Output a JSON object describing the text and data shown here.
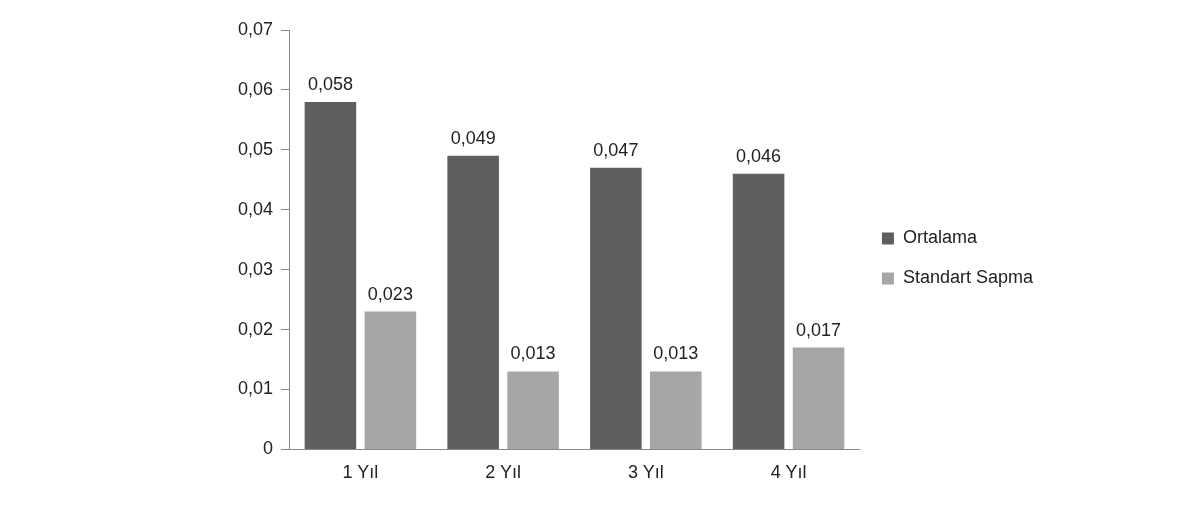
{
  "chart_data": {
    "type": "bar",
    "categories": [
      "1 Yıl",
      "2 Yıl",
      "3 Yıl",
      "4 Yıl"
    ],
    "series": [
      {
        "name": "Ortalama",
        "color": "#5f5f5f",
        "values": [
          0.058,
          0.049,
          0.047,
          0.046
        ],
        "value_labels": [
          "0,058",
          "0,049",
          "0,047",
          "0,046"
        ]
      },
      {
        "name": "Standart Sapma",
        "color": "#a6a6a6",
        "values": [
          0.023,
          0.013,
          0.013,
          0.017
        ],
        "value_labels": [
          "0,023",
          "0,013",
          "0,013",
          "0,017"
        ]
      }
    ],
    "ylim": [
      0,
      0.07
    ],
    "yticks": [
      0,
      {
        "value": 0.01,
        "label": "0,01"
      },
      {
        "value": 0.02,
        "label": "0,02"
      },
      {
        "value": 0.03,
        "label": "0,03"
      },
      {
        "value": 0.04,
        "label": "0,04"
      },
      {
        "value": 0.05,
        "label": "0,05"
      },
      {
        "value": 0.06,
        "label": "0,06"
      },
      {
        "value": 0.07,
        "label": "0,07"
      }
    ],
    "grid": false,
    "legend": "right"
  }
}
